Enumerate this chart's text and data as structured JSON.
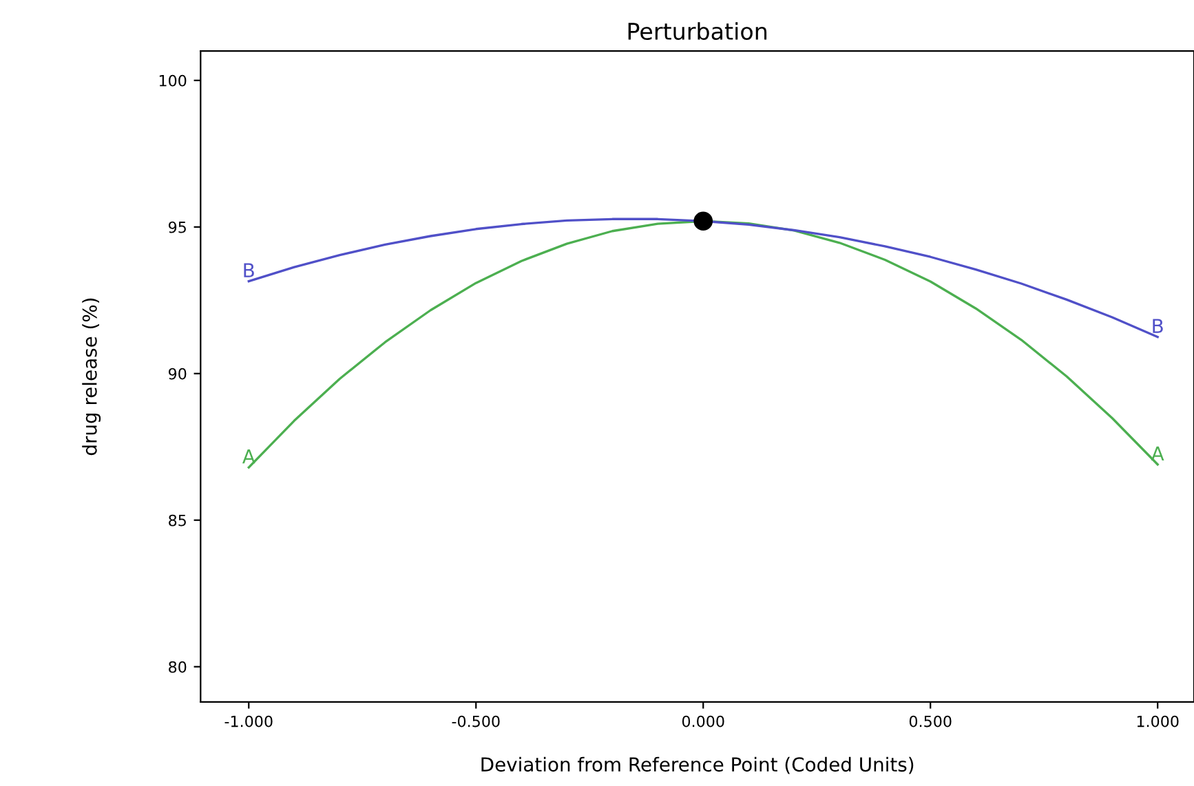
{
  "chart_data": {
    "type": "line",
    "title": "Perturbation",
    "xlabel": "Deviation from Reference Point (Coded Units)",
    "ylabel": "drug release (%)",
    "x": [
      -1.0,
      -0.9,
      -0.8,
      -0.7,
      -0.6,
      -0.5,
      -0.4,
      -0.3,
      -0.2,
      -0.1,
      0.0,
      0.1,
      0.2,
      0.3,
      0.4,
      0.5,
      0.6,
      0.7,
      0.8,
      0.9,
      1.0
    ],
    "series": [
      {
        "name": "A",
        "color": "#4caf50",
        "values": [
          86.8,
          88.39,
          89.82,
          91.07,
          92.16,
          93.09,
          93.84,
          94.43,
          94.86,
          95.11,
          95.2,
          95.12,
          94.88,
          94.46,
          93.88,
          93.14,
          92.22,
          91.15,
          89.9,
          88.48,
          86.9
        ]
      },
      {
        "name": "B",
        "color": "#5050c8",
        "values": [
          93.15,
          93.63,
          94.04,
          94.4,
          94.69,
          94.93,
          95.1,
          95.22,
          95.27,
          95.27,
          95.2,
          95.08,
          94.89,
          94.65,
          94.34,
          93.98,
          93.55,
          93.07,
          92.52,
          91.92,
          91.25
        ]
      },
      {
        "type": "scatter",
        "color": "#000000",
        "x": [
          0.0
        ],
        "values": [
          95.2
        ],
        "marker": "circle"
      }
    ],
    "xlim": [
      -1.106,
      1.08
    ],
    "ylim": [
      78.8,
      101
    ],
    "xticks": [
      {
        "value": -1,
        "label": "-1.000"
      },
      {
        "value": -0.5,
        "label": "-0.500"
      },
      {
        "value": 0,
        "label": "0.000"
      },
      {
        "value": 0.5,
        "label": "0.500"
      },
      {
        "value": 1,
        "label": "1.000"
      }
    ],
    "yticks": [
      80,
      85,
      90,
      95,
      100
    ],
    "grid": false,
    "legend": false
  }
}
